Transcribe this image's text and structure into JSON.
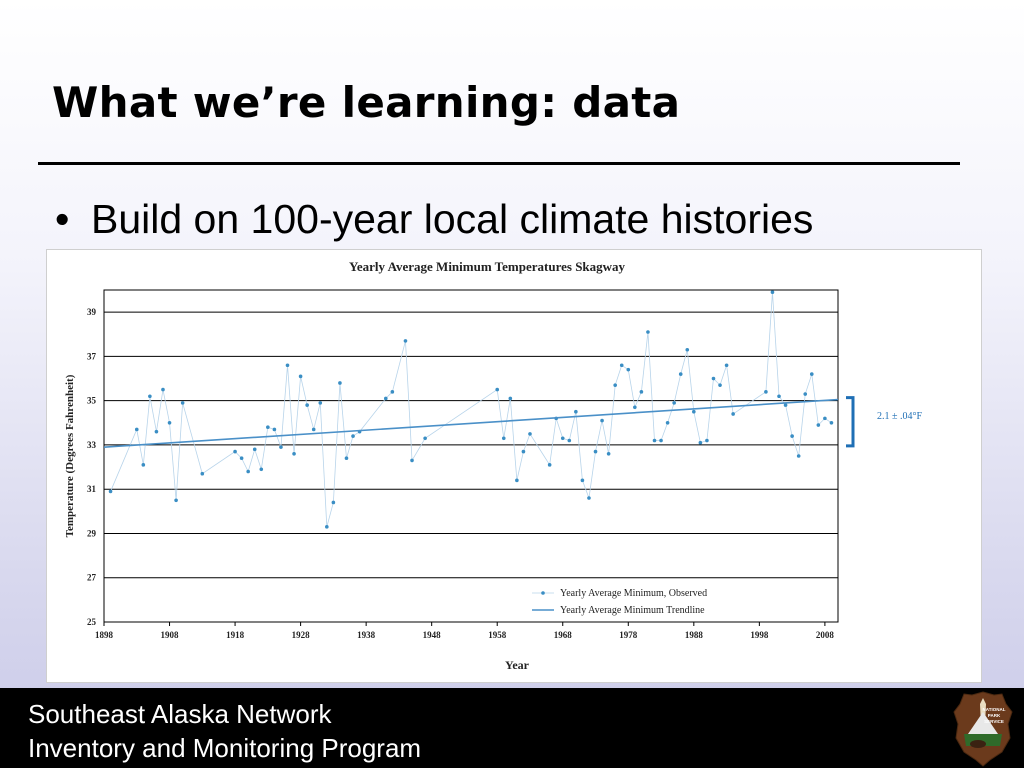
{
  "slide": {
    "title": "What we’re learning: data",
    "bullet": "Build on 100-year local climate histories"
  },
  "footer": {
    "line1": "Southeast Alaska Network",
    "line2": "Inventory and Monitoring Program",
    "logo_text": [
      "NATIONAL",
      "PARK",
      "SERVICE"
    ]
  },
  "chart_data": {
    "type": "scatter",
    "title": "Yearly Average Minimum Temperatures Skagway",
    "xlabel": "Year",
    "ylabel": "Temperature (Degrees Fahrenheit)",
    "xlim": [
      1898,
      2010
    ],
    "ylim": [
      25,
      40
    ],
    "x_ticks": [
      1898,
      1908,
      1918,
      1928,
      1938,
      1948,
      1958,
      1968,
      1978,
      1988,
      1998,
      2008
    ],
    "y_ticks": [
      25,
      27,
      29,
      31,
      33,
      35,
      37,
      39
    ],
    "grid": true,
    "legend_position": "bottom-right",
    "colors": {
      "observed": "#3a8ec4",
      "trend": "#4a90c8",
      "bracket": "#1f6fb5",
      "grid": "#000000"
    },
    "series": [
      {
        "name": "Yearly Average Minimum, Observed",
        "style": "points-with-faint-line",
        "x": [
          1899,
          1903,
          1904,
          1905,
          1906,
          1907,
          1908,
          1909,
          1910,
          1913,
          1918,
          1919,
          1920,
          1921,
          1922,
          1923,
          1924,
          1925,
          1926,
          1927,
          1928,
          1929,
          1930,
          1931,
          1932,
          1933,
          1934,
          1935,
          1936,
          1937,
          1941,
          1942,
          1944,
          1945,
          1947,
          1958,
          1959,
          1960,
          1961,
          1962,
          1963,
          1966,
          1967,
          1968,
          1969,
          1970,
          1971,
          1972,
          1973,
          1974,
          1975,
          1976,
          1977,
          1978,
          1979,
          1980,
          1981,
          1982,
          1983,
          1984,
          1985,
          1986,
          1987,
          1988,
          1989,
          1990,
          1991,
          1992,
          1993,
          1994,
          1999,
          2000,
          2001,
          2002,
          2003,
          2004,
          2005,
          2006,
          2007,
          2008,
          2009
        ],
        "y": [
          30.9,
          33.7,
          32.1,
          35.2,
          33.6,
          35.5,
          34,
          30.5,
          34.9,
          31.7,
          32.7,
          32.4,
          31.8,
          32.8,
          31.9,
          33.8,
          33.7,
          32.9,
          36.6,
          32.6,
          36.1,
          34.8,
          33.7,
          34.9,
          29.3,
          30.4,
          35.8,
          32.4,
          33.4,
          33.6,
          35.1,
          35.4,
          37.7,
          32.3,
          33.3,
          35.5,
          33.3,
          35.1,
          31.4,
          32.7,
          33.5,
          32.1,
          34.2,
          33.3,
          33.2,
          34.5,
          31.4,
          30.6,
          32.7,
          34.1,
          32.6,
          35.7,
          36.6,
          36.4,
          34.7,
          35.4,
          38.1,
          33.2,
          33.2,
          34,
          34.9,
          36.2,
          37.3,
          34.5,
          33.1,
          33.2,
          36,
          35.7,
          36.6,
          34.4,
          35.4,
          39.9,
          35.2,
          34.8,
          33.4,
          32.5,
          35.3,
          36.2,
          33.9,
          34.2,
          34
        ]
      },
      {
        "name": "Yearly Average Minimum Trendline",
        "style": "line",
        "x": [
          1898,
          2010
        ],
        "y": [
          32.9,
          35.05
        ]
      }
    ],
    "annotations": [
      {
        "text": "2.1 ± .04°F",
        "marker": "bracket",
        "y_range": [
          33,
          35
        ]
      }
    ]
  }
}
